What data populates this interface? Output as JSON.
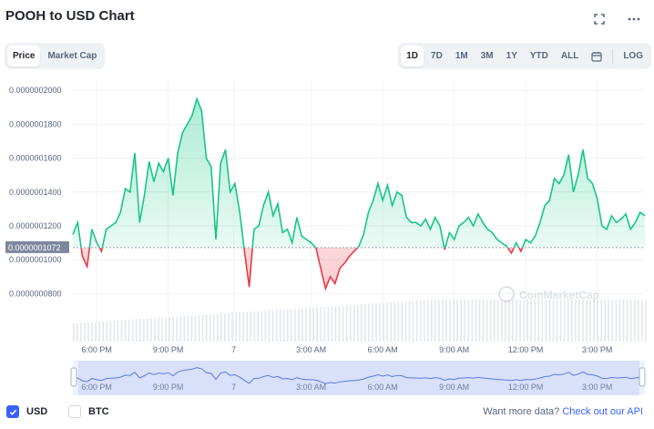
{
  "header": {
    "title": "POOH to USD Chart"
  },
  "toggle_left": [
    {
      "label": "Price",
      "active": true
    },
    {
      "label": "Market Cap",
      "active": false
    }
  ],
  "ranges": [
    {
      "label": "1D",
      "active": true
    },
    {
      "label": "7D",
      "active": false
    },
    {
      "label": "1M",
      "active": false
    },
    {
      "label": "3M",
      "active": false
    },
    {
      "label": "1Y",
      "active": false
    },
    {
      "label": "YTD",
      "active": false
    },
    {
      "label": "ALL",
      "active": false
    }
  ],
  "log_label": "LOG",
  "icons": {
    "fullscreen": "fullscreen-icon",
    "more": "more-icon",
    "calendar": "calendar-icon"
  },
  "colors": {
    "up": "#16c784",
    "down": "#ea3943",
    "accent": "#3861fb",
    "navigator": "#dbe3ff"
  },
  "chart_data": {
    "type": "line",
    "title": "POOH to USD Chart",
    "y_ticks": [
      "0.0000002000",
      "0.0000001800",
      "0.0000001600",
      "0.0000001400",
      "0.0000001200",
      "0.0000001000",
      "0.0000000800"
    ],
    "y_tick_values": [
      2e-07,
      1.8e-07,
      1.6e-07,
      1.4e-07,
      1.2e-07,
      1e-07,
      8e-08
    ],
    "ylim": [
      7.7e-08,
      2.06e-07
    ],
    "reference_value": 1.072e-07,
    "reference_label": "0.0000001072",
    "x_ticks": [
      "6:00 PM",
      "9:00 PM",
      "7",
      "3:00 AM",
      "6:00 AM",
      "9:00 AM",
      "12:00 PM",
      "3:00 PM"
    ],
    "x_tick_positions": [
      1,
      4,
      6.75,
      10,
      13,
      16,
      19,
      22
    ],
    "xlim": [
      0,
      24
    ],
    "series": [
      {
        "x": [
          0,
          0.2,
          0.4,
          0.6,
          0.8,
          1.0,
          1.2,
          1.4,
          1.6,
          1.8,
          2.0,
          2.2,
          2.4,
          2.6,
          2.8,
          3.0,
          3.2,
          3.4,
          3.6,
          3.8,
          4.0,
          4.2,
          4.4,
          4.6,
          4.8,
          5.0,
          5.2,
          5.4,
          5.6,
          5.8,
          6.0,
          6.2,
          6.4,
          6.6,
          6.8,
          7.0,
          7.2,
          7.4,
          7.6,
          7.8,
          8.0,
          8.2,
          8.4,
          8.6,
          8.8,
          9.0,
          9.2,
          9.4,
          9.6,
          9.8,
          10.0,
          10.2,
          10.4,
          10.6,
          10.8,
          11.0,
          11.2,
          11.4,
          11.6,
          11.8,
          12.0,
          12.2,
          12.4,
          12.6,
          12.8,
          13.0,
          13.2,
          13.4,
          13.6,
          13.8,
          14.0,
          14.2,
          14.4,
          14.6,
          14.8,
          15.0,
          15.2,
          15.4,
          15.6,
          15.8,
          16.0,
          16.2,
          16.4,
          16.6,
          16.8,
          17.0,
          17.2,
          17.4,
          17.6,
          17.8,
          18.0,
          18.2,
          18.4,
          18.6,
          18.8,
          19.0,
          19.2,
          19.4,
          19.6,
          19.8,
          20.0,
          20.2,
          20.4,
          20.6,
          20.8,
          21.0,
          21.2,
          21.4,
          21.6,
          21.8,
          22.0,
          22.2,
          22.4,
          22.6,
          22.8,
          23.0,
          23.2,
          23.4,
          23.6,
          23.8,
          24.0
        ],
        "values": [
          1.15e-07,
          1.22e-07,
          1.02e-07,
          9.6e-08,
          1.18e-07,
          1.1e-07,
          1.05e-07,
          1.18e-07,
          1.2e-07,
          1.22e-07,
          1.28e-07,
          1.42e-07,
          1.4e-07,
          1.63e-07,
          1.22e-07,
          1.38e-07,
          1.58e-07,
          1.46e-07,
          1.57e-07,
          1.52e-07,
          1.6e-07,
          1.38e-07,
          1.63e-07,
          1.75e-07,
          1.8e-07,
          1.85e-07,
          1.95e-07,
          1.88e-07,
          1.6e-07,
          1.55e-07,
          1.12e-07,
          1.57e-07,
          1.65e-07,
          1.4e-07,
          1.45e-07,
          1.28e-07,
          1.05e-07,
          8.4e-08,
          1.18e-07,
          1.2e-07,
          1.32e-07,
          1.4e-07,
          1.26e-07,
          1.33e-07,
          1.16e-07,
          1.18e-07,
          1.1e-07,
          1.25e-07,
          1.14e-07,
          1.12e-07,
          1.1e-07,
          1.07e-07,
          9.5e-08,
          8.3e-08,
          9e-08,
          8.6e-08,
          9.5e-08,
          9.8e-08,
          1.02e-07,
          1.05e-07,
          1.08e-07,
          1.15e-07,
          1.28e-07,
          1.35e-07,
          1.45e-07,
          1.35e-07,
          1.44e-07,
          1.32e-07,
          1.4e-07,
          1.38e-07,
          1.25e-07,
          1.22e-07,
          1.22e-07,
          1.2e-07,
          1.24e-07,
          1.18e-07,
          1.25e-07,
          1.2e-07,
          1.06e-07,
          1.16e-07,
          1.12e-07,
          1.2e-07,
          1.22e-07,
          1.25e-07,
          1.2e-07,
          1.27e-07,
          1.22e-07,
          1.18e-07,
          1.16e-07,
          1.12e-07,
          1.1e-07,
          1.08e-07,
          1.04e-07,
          1.1e-07,
          1.05e-07,
          1.12e-07,
          1.1e-07,
          1.14e-07,
          1.22e-07,
          1.32e-07,
          1.35e-07,
          1.48e-07,
          1.45e-07,
          1.5e-07,
          1.62e-07,
          1.4e-07,
          1.5e-07,
          1.65e-07,
          1.48e-07,
          1.45e-07,
          1.36e-07,
          1.2e-07,
          1.18e-07,
          1.26e-07,
          1.22e-07,
          1.24e-07,
          1.27e-07,
          1.18e-07,
          1.22e-07,
          1.28e-07,
          1.26e-07
        ]
      }
    ],
    "volume_note": "volume bars along the bottom",
    "watermark": "CoinMarketCap"
  },
  "footer": {
    "currencies": [
      {
        "label": "USD",
        "checked": true
      },
      {
        "label": "BTC",
        "checked": false
      }
    ],
    "more_text": "Want more data?",
    "more_link": "Check out our API"
  }
}
